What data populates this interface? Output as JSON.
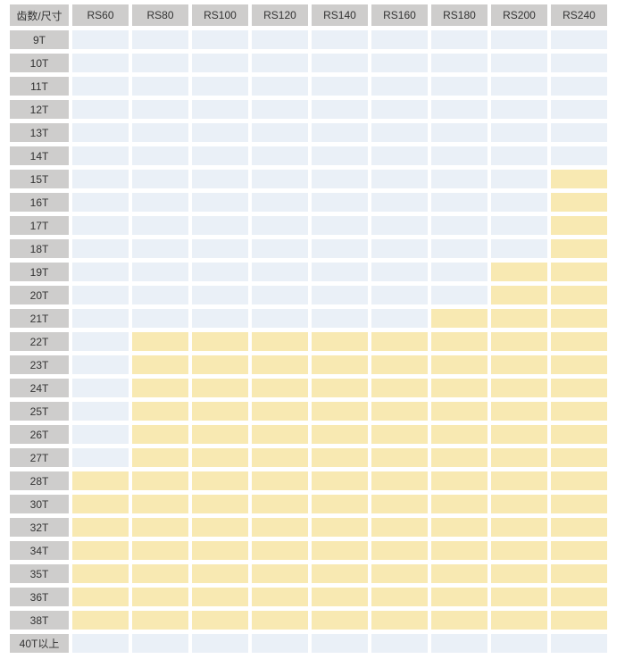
{
  "colors": {
    "header_bg": "#cecdcc",
    "label_bg": "#cecdcc",
    "cell_default": "#eaf0f7",
    "cell_highlight": "#f8e9b2",
    "text": "#333333",
    "page_bg": "#ffffff"
  },
  "chart_data": {
    "type": "heatmap",
    "corner_label": "齿数/尺寸",
    "columns": [
      "RS60",
      "RS80",
      "RS100",
      "RS120",
      "RS140",
      "RS160",
      "RS180",
      "RS200",
      "RS240"
    ],
    "cell_states": [
      "blue",
      "yellow"
    ],
    "rows": [
      {
        "label": "9T",
        "cells": [
          "blue",
          "blue",
          "blue",
          "blue",
          "blue",
          "blue",
          "blue",
          "blue",
          "blue"
        ]
      },
      {
        "label": "10T",
        "cells": [
          "blue",
          "blue",
          "blue",
          "blue",
          "blue",
          "blue",
          "blue",
          "blue",
          "blue"
        ]
      },
      {
        "label": "11T",
        "cells": [
          "blue",
          "blue",
          "blue",
          "blue",
          "blue",
          "blue",
          "blue",
          "blue",
          "blue"
        ]
      },
      {
        "label": "12T",
        "cells": [
          "blue",
          "blue",
          "blue",
          "blue",
          "blue",
          "blue",
          "blue",
          "blue",
          "blue"
        ]
      },
      {
        "label": "13T",
        "cells": [
          "blue",
          "blue",
          "blue",
          "blue",
          "blue",
          "blue",
          "blue",
          "blue",
          "blue"
        ]
      },
      {
        "label": "14T",
        "cells": [
          "blue",
          "blue",
          "blue",
          "blue",
          "blue",
          "blue",
          "blue",
          "blue",
          "blue"
        ]
      },
      {
        "label": "15T",
        "cells": [
          "blue",
          "blue",
          "blue",
          "blue",
          "blue",
          "blue",
          "blue",
          "blue",
          "yellow"
        ]
      },
      {
        "label": "16T",
        "cells": [
          "blue",
          "blue",
          "blue",
          "blue",
          "blue",
          "blue",
          "blue",
          "blue",
          "yellow"
        ]
      },
      {
        "label": "17T",
        "cells": [
          "blue",
          "blue",
          "blue",
          "blue",
          "blue",
          "blue",
          "blue",
          "blue",
          "yellow"
        ]
      },
      {
        "label": "18T",
        "cells": [
          "blue",
          "blue",
          "blue",
          "blue",
          "blue",
          "blue",
          "blue",
          "blue",
          "yellow"
        ]
      },
      {
        "label": "19T",
        "cells": [
          "blue",
          "blue",
          "blue",
          "blue",
          "blue",
          "blue",
          "blue",
          "yellow",
          "yellow"
        ]
      },
      {
        "label": "20T",
        "cells": [
          "blue",
          "blue",
          "blue",
          "blue",
          "blue",
          "blue",
          "blue",
          "yellow",
          "yellow"
        ]
      },
      {
        "label": "21T",
        "cells": [
          "blue",
          "blue",
          "blue",
          "blue",
          "blue",
          "blue",
          "yellow",
          "yellow",
          "yellow"
        ]
      },
      {
        "label": "22T",
        "cells": [
          "blue",
          "yellow",
          "yellow",
          "yellow",
          "yellow",
          "yellow",
          "yellow",
          "yellow",
          "yellow"
        ]
      },
      {
        "label": "23T",
        "cells": [
          "blue",
          "yellow",
          "yellow",
          "yellow",
          "yellow",
          "yellow",
          "yellow",
          "yellow",
          "yellow"
        ]
      },
      {
        "label": "24T",
        "cells": [
          "blue",
          "yellow",
          "yellow",
          "yellow",
          "yellow",
          "yellow",
          "yellow",
          "yellow",
          "yellow"
        ]
      },
      {
        "label": "25T",
        "cells": [
          "blue",
          "yellow",
          "yellow",
          "yellow",
          "yellow",
          "yellow",
          "yellow",
          "yellow",
          "yellow"
        ]
      },
      {
        "label": "26T",
        "cells": [
          "blue",
          "yellow",
          "yellow",
          "yellow",
          "yellow",
          "yellow",
          "yellow",
          "yellow",
          "yellow"
        ]
      },
      {
        "label": "27T",
        "cells": [
          "blue",
          "yellow",
          "yellow",
          "yellow",
          "yellow",
          "yellow",
          "yellow",
          "yellow",
          "yellow"
        ]
      },
      {
        "label": "28T",
        "cells": [
          "yellow",
          "yellow",
          "yellow",
          "yellow",
          "yellow",
          "yellow",
          "yellow",
          "yellow",
          "yellow"
        ]
      },
      {
        "label": "30T",
        "cells": [
          "yellow",
          "yellow",
          "yellow",
          "yellow",
          "yellow",
          "yellow",
          "yellow",
          "yellow",
          "yellow"
        ]
      },
      {
        "label": "32T",
        "cells": [
          "yellow",
          "yellow",
          "yellow",
          "yellow",
          "yellow",
          "yellow",
          "yellow",
          "yellow",
          "yellow"
        ]
      },
      {
        "label": "34T",
        "cells": [
          "yellow",
          "yellow",
          "yellow",
          "yellow",
          "yellow",
          "yellow",
          "yellow",
          "yellow",
          "yellow"
        ]
      },
      {
        "label": "35T",
        "cells": [
          "yellow",
          "yellow",
          "yellow",
          "yellow",
          "yellow",
          "yellow",
          "yellow",
          "yellow",
          "yellow"
        ]
      },
      {
        "label": "36T",
        "cells": [
          "yellow",
          "yellow",
          "yellow",
          "yellow",
          "yellow",
          "yellow",
          "yellow",
          "yellow",
          "yellow"
        ]
      },
      {
        "label": "38T",
        "cells": [
          "yellow",
          "yellow",
          "yellow",
          "yellow",
          "yellow",
          "yellow",
          "yellow",
          "yellow",
          "yellow"
        ]
      },
      {
        "label": "40T以上",
        "cells": [
          "blue",
          "blue",
          "blue",
          "blue",
          "blue",
          "blue",
          "blue",
          "blue",
          "blue"
        ]
      }
    ]
  }
}
